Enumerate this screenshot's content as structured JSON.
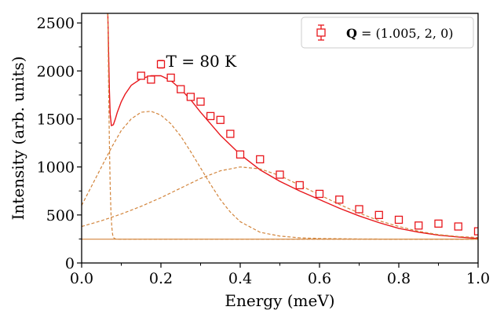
{
  "chart_data": {
    "type": "scatter",
    "title": "",
    "xlabel": "Energy (meV)",
    "ylabel": "Intensity (arb. units)",
    "xlim": [
      0.0,
      1.0
    ],
    "ylim": [
      0,
      2600
    ],
    "xticks": [
      0.0,
      0.2,
      0.4,
      0.6,
      0.8,
      1.0
    ],
    "xtick_labels": [
      "0.0",
      "0.2",
      "0.4",
      "0.6",
      "0.8",
      "1.0"
    ],
    "yticks": [
      0,
      500,
      1000,
      1500,
      2000,
      2500
    ],
    "ytick_labels": [
      "0",
      "500",
      "1000",
      "1500",
      "2000",
      "2500"
    ],
    "annotation": {
      "text": "T = 80 K",
      "x": 0.3,
      "y": 2100
    },
    "legend": {
      "position": "top-right",
      "label_bold": "Q",
      "label_rest": " = (1.005, 2, 0)"
    },
    "colors": {
      "data": "#e8161b",
      "fit": "#e8161b",
      "components": "#d2843b"
    },
    "series": [
      {
        "name": "Q = (1.005, 2, 0)",
        "kind": "points",
        "x": [
          0.15,
          0.175,
          0.2,
          0.225,
          0.25,
          0.275,
          0.3,
          0.325,
          0.35,
          0.375,
          0.4,
          0.45,
          0.5,
          0.55,
          0.6,
          0.65,
          0.7,
          0.75,
          0.8,
          0.85,
          0.9,
          0.95,
          1.0
        ],
        "y": [
          1950,
          1910,
          2070,
          1930,
          1810,
          1730,
          1680,
          1530,
          1490,
          1345,
          1130,
          1080,
          920,
          810,
          720,
          660,
          560,
          500,
          450,
          390,
          410,
          380,
          330
        ],
        "yerr": [
          35,
          35,
          40,
          35,
          35,
          35,
          35,
          35,
          35,
          35,
          30,
          30,
          30,
          25,
          25,
          25,
          25,
          25,
          25,
          25,
          25,
          25,
          25
        ]
      },
      {
        "name": "",
        "kind": "fit-total",
        "x": [
          0.066,
          0.068,
          0.07,
          0.072,
          0.075,
          0.08,
          0.085,
          0.09,
          0.1,
          0.11,
          0.125,
          0.15,
          0.175,
          0.2,
          0.225,
          0.25,
          0.275,
          0.3,
          0.35,
          0.4,
          0.45,
          0.5,
          0.55,
          0.6,
          0.65,
          0.7,
          0.75,
          0.8,
          0.85,
          0.9,
          0.95,
          1.0
        ],
        "y": [
          2600,
          2200,
          1800,
          1550,
          1430,
          1440,
          1500,
          1570,
          1680,
          1760,
          1850,
          1920,
          1950,
          1950,
          1900,
          1810,
          1700,
          1570,
          1330,
          1130,
          970,
          850,
          750,
          660,
          570,
          490,
          420,
          360,
          320,
          290,
          270,
          255
        ]
      },
      {
        "name": "",
        "kind": "component-elastic",
        "x": [
          0.066,
          0.068,
          0.07,
          0.072,
          0.074,
          0.076,
          0.078,
          0.08,
          0.085,
          0.1,
          0.2,
          0.4,
          0.6,
          0.8,
          1.0
        ],
        "y": [
          2600,
          1850,
          1250,
          800,
          520,
          380,
          300,
          265,
          250,
          248,
          248,
          248,
          248,
          248,
          248
        ]
      },
      {
        "name": "",
        "kind": "component-peak-1",
        "x": [
          0.0,
          0.025,
          0.05,
          0.075,
          0.1,
          0.125,
          0.15,
          0.175,
          0.2,
          0.225,
          0.25,
          0.275,
          0.3,
          0.325,
          0.35,
          0.375,
          0.4,
          0.45,
          0.5,
          0.55,
          0.6,
          0.7,
          0.8,
          1.0
        ],
        "y": [
          600,
          800,
          1000,
          1200,
          1380,
          1500,
          1570,
          1580,
          1540,
          1450,
          1320,
          1160,
          990,
          820,
          660,
          530,
          430,
          320,
          280,
          262,
          255,
          250,
          248,
          248
        ]
      },
      {
        "name": "",
        "kind": "component-peak-2",
        "x": [
          0.0,
          0.05,
          0.1,
          0.15,
          0.2,
          0.25,
          0.3,
          0.35,
          0.4,
          0.45,
          0.5,
          0.55,
          0.6,
          0.65,
          0.7,
          0.75,
          0.8,
          0.85,
          0.9,
          0.95,
          1.0
        ],
        "y": [
          380,
          440,
          510,
          590,
          680,
          780,
          880,
          960,
          1000,
          980,
          910,
          810,
          710,
          610,
          520,
          440,
          380,
          330,
          295,
          275,
          265
        ]
      },
      {
        "name": "",
        "kind": "baseline",
        "x": [
          0.0,
          1.0
        ],
        "y": [
          248,
          248
        ]
      }
    ]
  }
}
